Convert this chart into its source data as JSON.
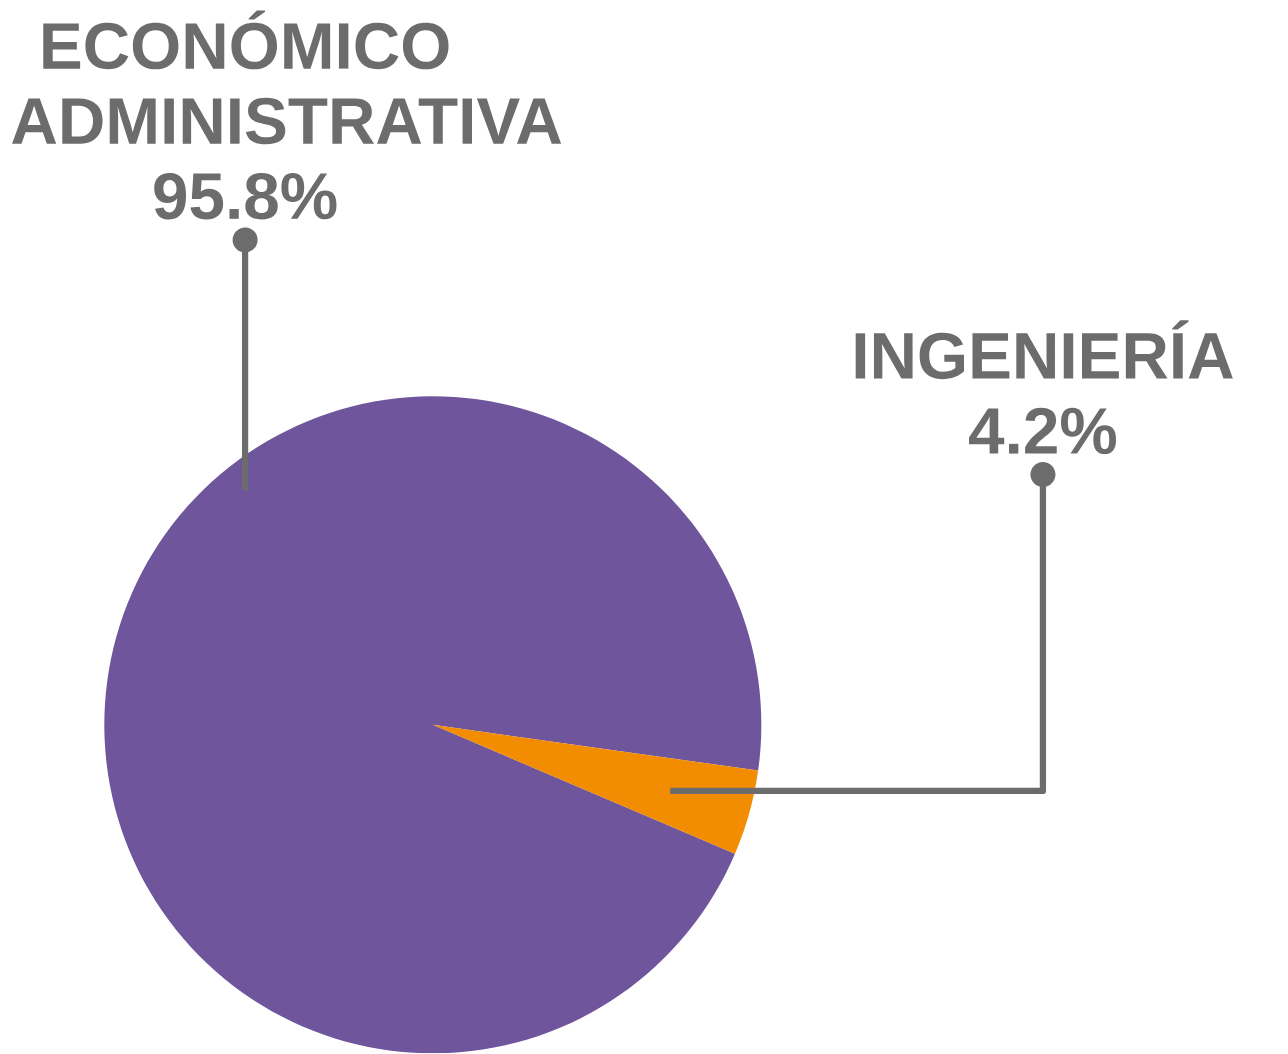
{
  "chart_data": {
    "type": "pie",
    "categories": [
      "ECONÓMICO ADMINISTRATIVA",
      "INGENIERÍA"
    ],
    "values": [
      95.8,
      4.2
    ],
    "colors": [
      "#6f559c",
      "#f28c00"
    ],
    "value_labels": [
      "95.8%",
      "4.2%"
    ]
  }
}
